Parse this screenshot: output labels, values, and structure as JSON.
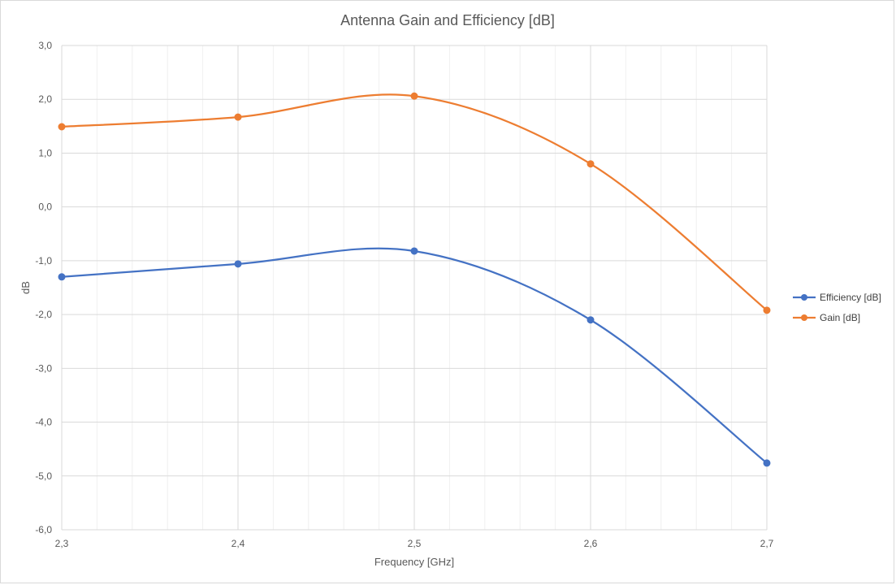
{
  "chart_data": {
    "type": "line",
    "title": "Antenna Gain and Efficiency [dB]",
    "xlabel": "Frequency [GHz]",
    "ylabel": "dB",
    "x": [
      2.3,
      2.4,
      2.5,
      2.6,
      2.7
    ],
    "xlim": [
      2.3,
      2.7
    ],
    "ylim": [
      -6.0,
      3.0
    ],
    "x_tick_labels": [
      "2,3",
      "2,4",
      "2,5",
      "2,6",
      "2,7"
    ],
    "y_tick_labels": [
      "3,0",
      "2,0",
      "1,0",
      "0,0",
      "-1,0",
      "-2,0",
      "-3,0",
      "-4,0",
      "-5,0",
      "-6,0"
    ],
    "grid": true,
    "smooth": true,
    "legend_position": "right",
    "series": [
      {
        "name": "Efficiency [dB]",
        "color": "#4472C4",
        "values": [
          -1.3,
          -1.06,
          -0.82,
          -2.1,
          -4.76
        ]
      },
      {
        "name": "Gain [dB]",
        "color": "#ED7D31",
        "values": [
          1.49,
          1.67,
          2.06,
          0.8,
          -1.92
        ]
      }
    ]
  }
}
